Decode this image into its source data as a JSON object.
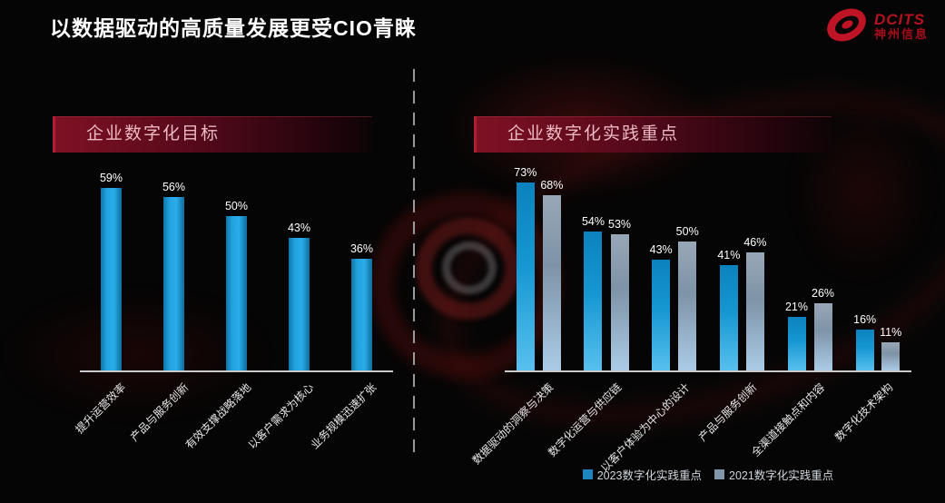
{
  "slide": {
    "title": "以数据驱动的高质量发展更受CIO青睐"
  },
  "logo": {
    "brand": "DCITS",
    "company": "神州信息",
    "color": "#bf1425"
  },
  "colors": {
    "background": "#060505",
    "banner_red": "#7e1124",
    "banner_text": "#edb9c3",
    "axis_line": "#c9c9c9",
    "bar_blue": "#1a97d2",
    "bar_gray_blue": "#8ba2b6",
    "value_label": "#ffffff"
  },
  "chart_data": [
    {
      "type": "bar",
      "title": "企业数字化目标",
      "categories": [
        "提升运营效率",
        "产品与服务创新",
        "有效支撑战略落地",
        "以客户需求为核心",
        "业务规模迅速扩张"
      ],
      "values": [
        59,
        56,
        50,
        43,
        36
      ],
      "unit": "%",
      "ylim": [
        0,
        64
      ],
      "grid": false,
      "data_labels": true,
      "legend_position": "none"
    },
    {
      "type": "bar",
      "title": "企业数字化实践重点",
      "categories": [
        "数据驱动的洞察与决策",
        "数字化运营与供应链",
        "以客户体验为中心的设计",
        "产品与服务创新",
        "全渠道接触点和内容",
        "数字化技术架构"
      ],
      "series": [
        {
          "name": "2023数字化实践重点",
          "color": "#1a97d2",
          "values": [
            73,
            54,
            43,
            41,
            21,
            16
          ]
        },
        {
          "name": "2021数字化实践重点",
          "color": "#8ba2b6",
          "values": [
            68,
            53,
            50,
            46,
            26,
            11
          ]
        }
      ],
      "unit": "%",
      "ylim": [
        0,
        77
      ],
      "grid": false,
      "data_labels": true,
      "legend_position": "bottom"
    }
  ]
}
